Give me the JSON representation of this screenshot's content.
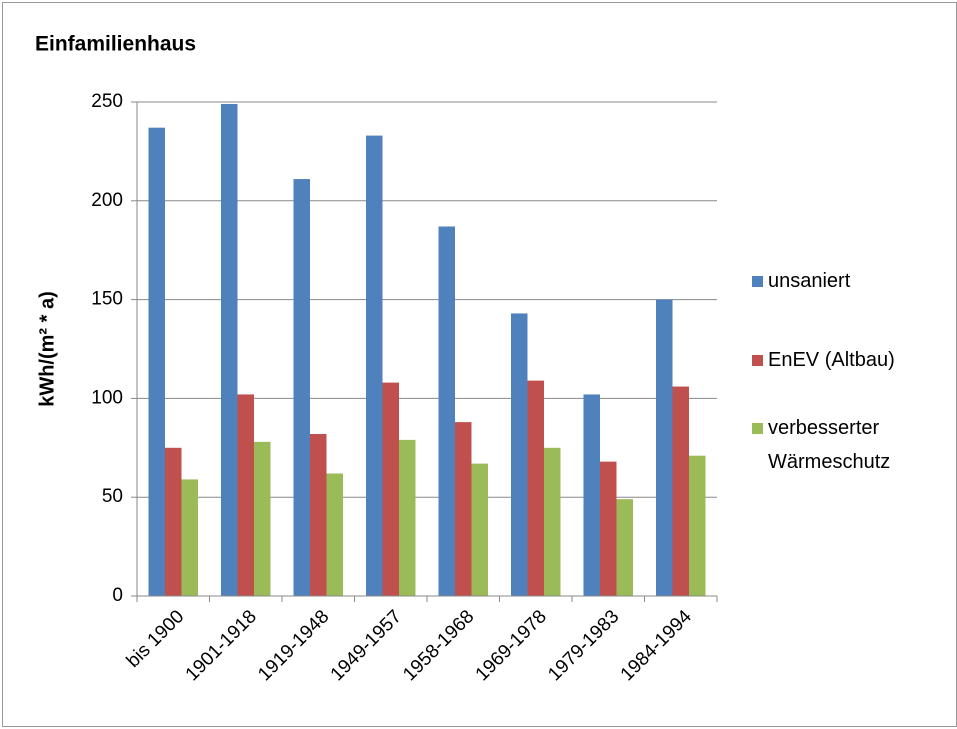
{
  "chart_data": {
    "type": "bar",
    "title": "Einfamilienhaus",
    "y_label": "kWh/(m² * a)",
    "categories": [
      "bis 1900",
      "1901-1918",
      "1919-1948",
      "1949-1957",
      "1958-1968",
      "1969-1978",
      "1979-1983",
      "1984-1994"
    ],
    "series": [
      {
        "name": "unsaniert",
        "color": "#4f81bd",
        "values": [
          237,
          249,
          211,
          233,
          187,
          143,
          102,
          150
        ]
      },
      {
        "name": "EnEV (Altbau)",
        "color": "#c0504d",
        "values": [
          75,
          102,
          82,
          108,
          88,
          109,
          68,
          106
        ]
      },
      {
        "name": "verbesserter Wärmeschutz",
        "color": "#9bbb59",
        "values": [
          59,
          78,
          62,
          79,
          67,
          75,
          49,
          71
        ]
      }
    ],
    "ylim": [
      0,
      250
    ],
    "yticks": [
      0,
      50,
      100,
      150,
      200,
      250
    ],
    "grid": true,
    "legend": "right"
  }
}
